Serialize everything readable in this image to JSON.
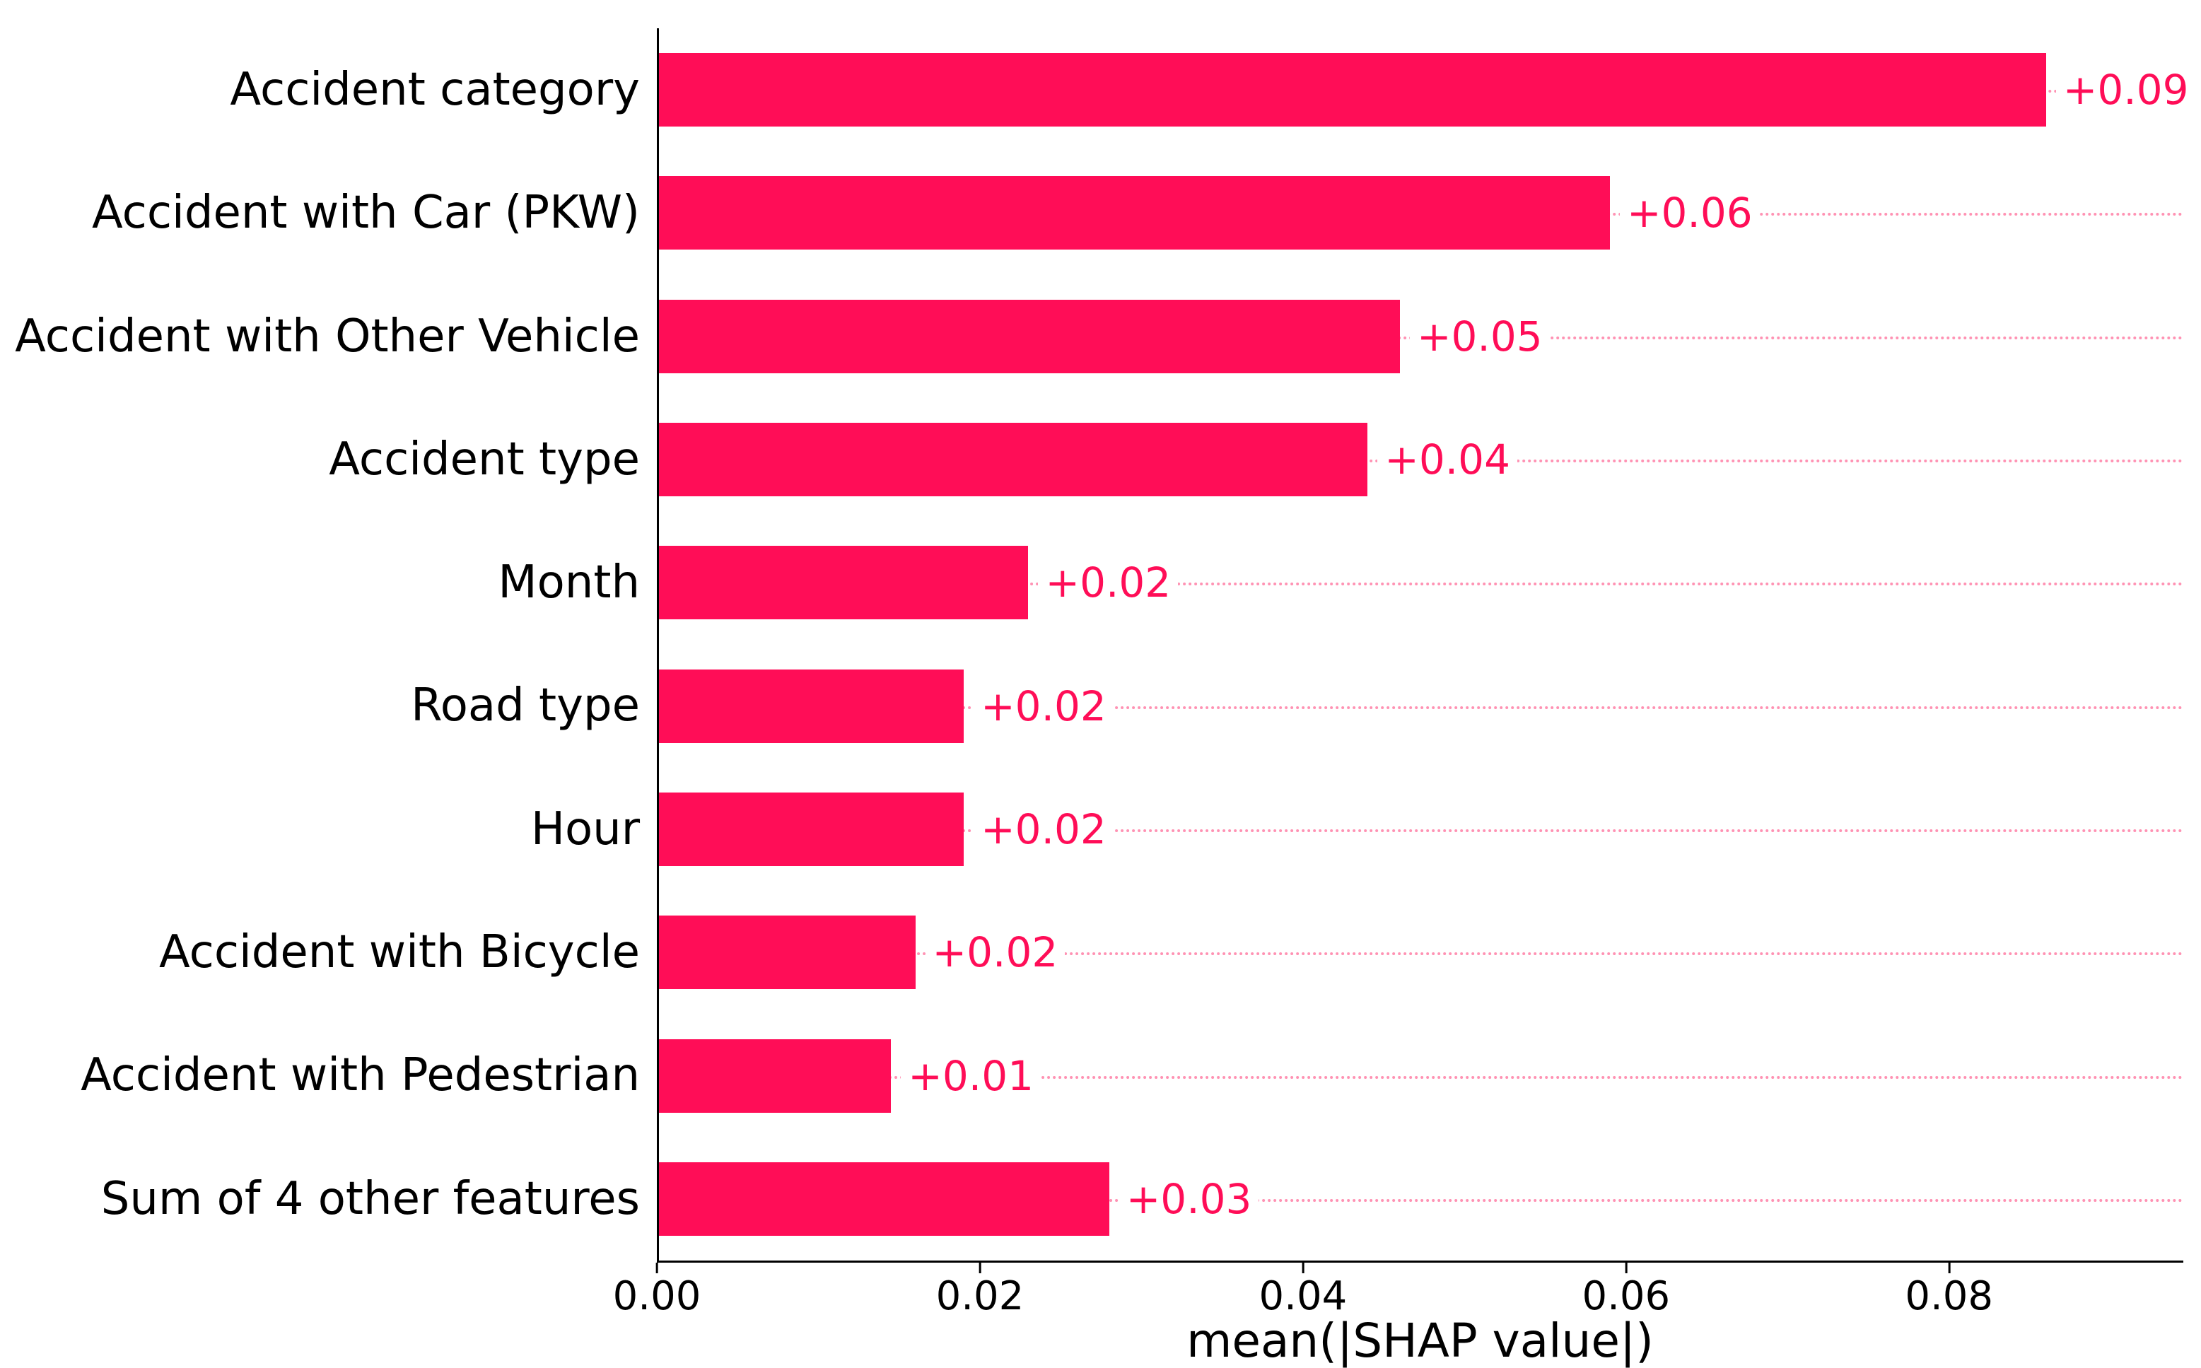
{
  "chart_data": {
    "type": "bar",
    "orientation": "horizontal",
    "title": "",
    "xlabel": "mean(|SHAP value|)",
    "ylabel": "",
    "xlim": [
      0,
      0.0945
    ],
    "xticks": [
      0.0,
      0.02,
      0.04,
      0.06,
      0.08
    ],
    "grid": "dotted horizontal line per feature row",
    "legend": "none",
    "bar_color": "#ff0d57",
    "categories": [
      "Accident category",
      "Accident with Car (PKW)",
      "Accident with Other Vehicle",
      "Accident type",
      "Month",
      "Road type",
      "Hour",
      "Accident with Bicycle",
      "Accident with Pedestrian",
      "Sum of 4 other features"
    ],
    "values": [
      0.086,
      0.059,
      0.046,
      0.044,
      0.023,
      0.019,
      0.019,
      0.016,
      0.0145,
      0.028
    ],
    "value_labels": [
      "+0.09",
      "+0.06",
      "+0.05",
      "+0.04",
      "+0.02",
      "+0.02",
      "+0.02",
      "+0.02",
      "+0.01",
      "+0.03"
    ]
  }
}
